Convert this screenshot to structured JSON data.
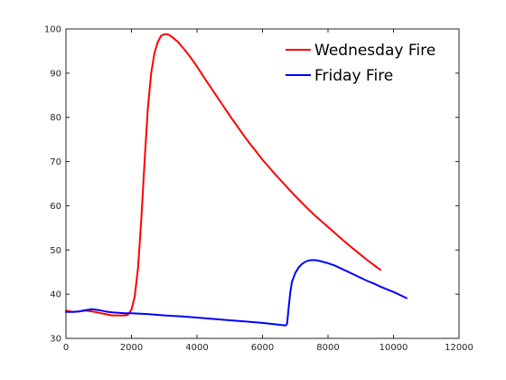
{
  "chart_data": {
    "type": "line",
    "title": "",
    "xlabel": "",
    "ylabel": "",
    "xlim": [
      0,
      12000
    ],
    "ylim": [
      30,
      100
    ],
    "xticks": [
      0,
      2000,
      4000,
      6000,
      8000,
      10000,
      12000
    ],
    "yticks": [
      30,
      40,
      50,
      60,
      70,
      80,
      90,
      100
    ],
    "xtick_labels": [
      "0",
      "2000",
      "4000",
      "6000",
      "8000",
      "10000",
      "12000"
    ],
    "ytick_labels": [
      "30",
      "40",
      "50",
      "60",
      "70",
      "80",
      "90",
      "100"
    ],
    "grid": false,
    "box": true,
    "legend": {
      "placement": "top-right",
      "box": false
    },
    "series": [
      {
        "name": "Wednesday Fire",
        "color": "#ff0000",
        "x": [
          0,
          200,
          400,
          600,
          800,
          1000,
          1200,
          1400,
          1600,
          1800,
          1900,
          2000,
          2100,
          2200,
          2300,
          2400,
          2500,
          2600,
          2700,
          2800,
          2900,
          3000,
          3100,
          3200,
          3300,
          3400,
          3600,
          3800,
          4000,
          4200,
          4400,
          4600,
          4800,
          5000,
          5200,
          5400,
          5600,
          5800,
          6000,
          6200,
          6400,
          6600,
          6800,
          7000,
          7200,
          7400,
          7600,
          7800,
          8000,
          8200,
          8400,
          8600,
          8800,
          9000,
          9200,
          9400,
          9600
        ],
        "y": [
          36.3,
          36.0,
          36.1,
          36.3,
          36.1,
          35.8,
          35.5,
          35.2,
          35.2,
          35.2,
          35.4,
          36.5,
          39.5,
          46,
          57,
          70,
          82,
          90,
          94.5,
          97,
          98.4,
          98.8,
          98.8,
          98.4,
          97.8,
          97.2,
          95.5,
          93.6,
          91.5,
          89.2,
          87.0,
          84.8,
          82.6,
          80.4,
          78.3,
          76.2,
          74.2,
          72.3,
          70.4,
          68.7,
          67.0,
          65.4,
          63.8,
          62.2,
          60.7,
          59.2,
          57.8,
          56.5,
          55.2,
          53.9,
          52.6,
          51.3,
          50.1,
          48.9,
          47.7,
          46.6,
          45.5
        ]
      },
      {
        "name": "Friday Fire",
        "color": "#0000ff",
        "x": [
          0,
          200,
          400,
          600,
          800,
          1000,
          1200,
          1400,
          1600,
          1800,
          2000,
          2500,
          3000,
          3500,
          4000,
          4500,
          5000,
          5500,
          6000,
          6500,
          6700,
          6750,
          6800,
          6850,
          6900,
          7000,
          7100,
          7200,
          7300,
          7400,
          7500,
          7600,
          7700,
          7800,
          8000,
          8200,
          8400,
          8600,
          8800,
          9000,
          9200,
          9400,
          9600,
          9800,
          10000,
          10200,
          10400
        ],
        "y": [
          36.0,
          36.0,
          36.1,
          36.4,
          36.6,
          36.4,
          36.1,
          35.9,
          35.8,
          35.7,
          35.7,
          35.5,
          35.2,
          35.0,
          34.7,
          34.4,
          34.1,
          33.8,
          33.5,
          33.1,
          32.9,
          33.3,
          37.0,
          40.5,
          42.8,
          44.8,
          46.0,
          46.8,
          47.3,
          47.6,
          47.7,
          47.7,
          47.6,
          47.4,
          47.0,
          46.5,
          45.8,
          45.1,
          44.4,
          43.7,
          43.0,
          42.4,
          41.7,
          41.1,
          40.5,
          39.8,
          39.1
        ]
      }
    ]
  }
}
